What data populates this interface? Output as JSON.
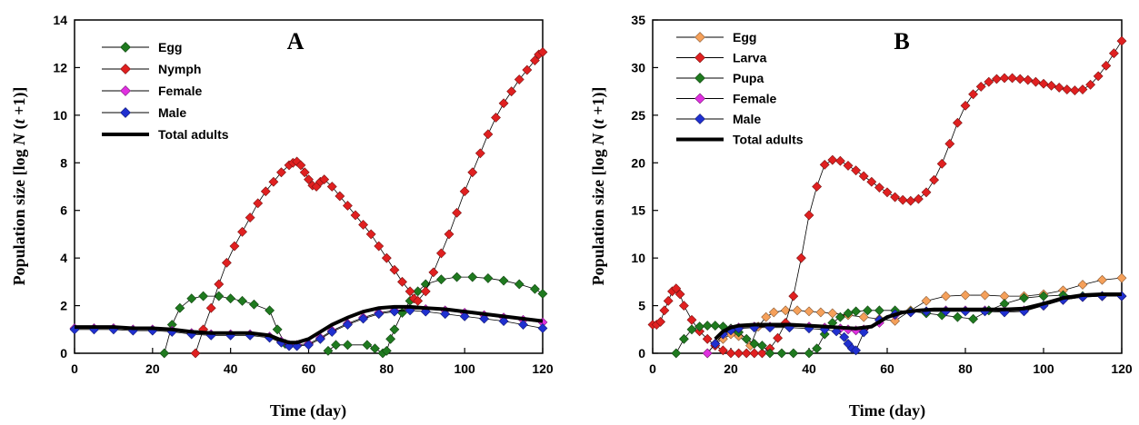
{
  "chart_data": [
    {
      "type": "line",
      "panel": "A",
      "xlabel": "Time (day)",
      "ylabel_pre": "Population size [log ",
      "ylabel_italic": "N",
      "ylabel_mid": " (",
      "ylabel_t": "t",
      "ylabel_post": " +1)]",
      "xlim": [
        0,
        120
      ],
      "ylim": [
        0,
        14
      ],
      "xticks": [
        "0",
        "20",
        "40",
        "60",
        "80",
        "100",
        "120"
      ],
      "yticks": [
        "0",
        "2",
        "4",
        "6",
        "8",
        "10",
        "12",
        "14"
      ],
      "grid": false,
      "legend_position": "top-left",
      "series": [
        {
          "name": "Egg",
          "color": "#1f7a1f",
          "marker": "diamond",
          "x": [
            0,
            22,
            23,
            25,
            27,
            30,
            33,
            37,
            40,
            43,
            46,
            50,
            52,
            54,
            55,
            56,
            58,
            60,
            62,
            65,
            67,
            70,
            75,
            77,
            79,
            80,
            81,
            82,
            84,
            86,
            88,
            90,
            94,
            98,
            102,
            106,
            110,
            114,
            118,
            120
          ],
          "y": [
            null,
            null,
            0,
            1.2,
            1.9,
            2.3,
            2.4,
            2.4,
            2.3,
            2.2,
            2.05,
            1.8,
            1.0,
            0.4,
            null,
            null,
            null,
            null,
            null,
            0.1,
            0.35,
            0.35,
            0.35,
            0.2,
            0,
            0.1,
            0.6,
            1.0,
            1.7,
            2.2,
            2.6,
            2.9,
            3.1,
            3.2,
            3.2,
            3.15,
            3.05,
            2.9,
            2.7,
            2.5
          ]
        },
        {
          "name": "Nymph",
          "color": "#e02020",
          "marker": "diamond",
          "x": [
            31,
            33,
            35,
            37,
            39,
            41,
            43,
            45,
            47,
            49,
            51,
            53,
            55,
            56,
            57,
            58,
            59,
            60,
            61,
            62,
            63,
            64,
            66,
            68,
            70,
            72,
            74,
            76,
            78,
            80,
            82,
            84,
            86,
            87,
            88,
            90,
            92,
            94,
            96,
            98,
            100,
            102,
            104,
            106,
            108,
            110,
            112,
            114,
            116,
            118,
            119,
            120
          ],
          "y": [
            0,
            1,
            1.9,
            2.9,
            3.8,
            4.5,
            5.1,
            5.7,
            6.3,
            6.8,
            7.2,
            7.6,
            7.9,
            8.0,
            8.05,
            7.9,
            7.6,
            7.3,
            7.05,
            7.0,
            7.2,
            7.3,
            7.0,
            6.6,
            6.2,
            5.8,
            5.4,
            5.0,
            4.5,
            4.0,
            3.5,
            3.0,
            2.6,
            2.3,
            2.2,
            2.6,
            3.4,
            4.2,
            5.0,
            5.9,
            6.8,
            7.6,
            8.4,
            9.2,
            9.9,
            10.5,
            11.0,
            11.5,
            11.9,
            12.3,
            12.55,
            12.65
          ]
        },
        {
          "name": "Female",
          "color": "#e030e0",
          "marker": "diamond",
          "x": [
            0,
            5,
            10,
            15,
            20,
            25,
            30,
            35,
            40,
            45,
            50,
            53,
            55,
            57,
            60,
            63,
            66,
            70,
            74,
            78,
            82,
            86,
            90,
            95,
            100,
            105,
            110,
            115,
            120
          ],
          "y": [
            1.05,
            1.05,
            1.05,
            1.0,
            1.0,
            0.95,
            0.85,
            0.8,
            0.8,
            0.8,
            0.7,
            0.5,
            0.35,
            0.35,
            0.4,
            0.65,
            0.95,
            1.25,
            1.5,
            1.7,
            1.8,
            1.85,
            1.85,
            1.8,
            1.7,
            1.6,
            1.5,
            1.4,
            1.3
          ]
        },
        {
          "name": "Male",
          "color": "#2030d0",
          "marker": "diamond",
          "x": [
            0,
            5,
            10,
            15,
            20,
            25,
            30,
            35,
            40,
            45,
            50,
            53,
            55,
            57,
            60,
            63,
            66,
            70,
            74,
            78,
            82,
            86,
            90,
            95,
            100,
            105,
            110,
            115,
            120
          ],
          "y": [
            1.0,
            1.0,
            1.0,
            0.95,
            0.95,
            0.9,
            0.8,
            0.75,
            0.75,
            0.75,
            0.65,
            0.45,
            0.3,
            0.3,
            0.35,
            0.6,
            0.9,
            1.2,
            1.45,
            1.65,
            1.75,
            1.8,
            1.75,
            1.65,
            1.55,
            1.45,
            1.35,
            1.2,
            1.05
          ]
        },
        {
          "name": "Total adults",
          "color": "#000000",
          "marker": "none",
          "x": [
            0,
            5,
            10,
            15,
            20,
            25,
            30,
            35,
            40,
            45,
            50,
            53,
            55,
            57,
            60,
            63,
            66,
            70,
            74,
            78,
            82,
            86,
            90,
            95,
            100,
            105,
            110,
            115,
            120
          ],
          "y": [
            1.1,
            1.1,
            1.1,
            1.05,
            1.05,
            1.0,
            0.9,
            0.85,
            0.85,
            0.85,
            0.75,
            0.55,
            0.45,
            0.45,
            0.6,
            0.9,
            1.2,
            1.5,
            1.75,
            1.9,
            1.95,
            1.95,
            1.9,
            1.85,
            1.75,
            1.65,
            1.55,
            1.45,
            1.35
          ]
        }
      ]
    },
    {
      "type": "line",
      "panel": "B",
      "xlabel": "Time (day)",
      "ylabel_pre": "Population size [log ",
      "ylabel_italic": "N",
      "ylabel_mid": " (",
      "ylabel_t": "t",
      "ylabel_post": " +1)]",
      "xlim": [
        0,
        120
      ],
      "ylim": [
        0,
        35
      ],
      "xticks": [
        "0",
        "20",
        "40",
        "60",
        "80",
        "100",
        "120"
      ],
      "yticks": [
        "0",
        "5",
        "10",
        "15",
        "20",
        "25",
        "30",
        "35"
      ],
      "grid": false,
      "legend_position": "top-left",
      "series": [
        {
          "name": "Egg",
          "color": "#f5a05a",
          "marker": "diamond",
          "x": [
            14,
            16,
            18,
            20,
            22,
            25,
            27,
            29,
            31,
            34,
            37,
            40,
            43,
            46,
            50,
            54,
            58,
            62,
            66,
            70,
            75,
            80,
            85,
            90,
            95,
            100,
            105,
            110,
            115,
            120
          ],
          "y": [
            0,
            1.0,
            1.5,
            2.0,
            1.8,
            0.8,
            2.8,
            3.8,
            4.3,
            4.5,
            4.5,
            4.4,
            4.3,
            4.2,
            4.0,
            3.8,
            3.6,
            3.4,
            4.5,
            5.5,
            6.0,
            6.1,
            6.1,
            6.0,
            6.0,
            6.2,
            6.6,
            7.2,
            7.7,
            7.9
          ]
        },
        {
          "name": "Larva",
          "color": "#e02020",
          "marker": "diamond",
          "x": [
            0,
            1,
            2,
            3,
            4,
            5,
            6,
            7,
            8,
            10,
            12,
            14,
            16,
            18,
            20,
            22,
            24,
            26,
            28,
            30,
            32,
            34,
            36,
            38,
            40,
            42,
            44,
            46,
            48,
            50,
            52,
            54,
            56,
            58,
            60,
            62,
            64,
            66,
            68,
            70,
            72,
            74,
            76,
            78,
            80,
            82,
            84,
            86,
            88,
            90,
            92,
            94,
            96,
            98,
            100,
            102,
            104,
            106,
            108,
            110,
            112,
            114,
            116,
            118,
            120
          ],
          "y": [
            3,
            3,
            3.3,
            4.5,
            5.5,
            6.5,
            6.8,
            6.2,
            5.0,
            3.5,
            2.3,
            1.5,
            0.8,
            0.3,
            0,
            0,
            0,
            0,
            0,
            0.5,
            1.6,
            3.2,
            6.0,
            10.0,
            14.5,
            17.5,
            19.8,
            20.3,
            20.2,
            19.7,
            19.2,
            18.6,
            18.0,
            17.4,
            16.9,
            16.4,
            16.1,
            16.0,
            16.2,
            16.9,
            18.2,
            19.9,
            22.0,
            24.2,
            26.0,
            27.2,
            28.0,
            28.5,
            28.8,
            28.9,
            28.9,
            28.8,
            28.7,
            28.5,
            28.3,
            28.1,
            27.9,
            27.7,
            27.6,
            27.7,
            28.2,
            29.1,
            30.2,
            31.5,
            32.8
          ]
        },
        {
          "name": "Pupa",
          "color": "#1f7a1f",
          "marker": "diamond",
          "x": [
            6,
            8,
            10,
            12,
            14,
            16,
            18,
            20,
            22,
            24,
            26,
            28,
            30,
            33,
            36,
            40,
            42,
            44,
            46,
            48,
            50,
            52,
            55,
            58,
            62,
            66,
            70,
            74,
            78,
            82,
            86,
            90,
            95,
            100,
            105,
            110,
            115,
            120
          ],
          "y": [
            0,
            1.5,
            2.5,
            2.8,
            2.9,
            2.9,
            2.8,
            2.6,
            2.2,
            1.5,
            1.0,
            0.8,
            0,
            0,
            0,
            0,
            0.5,
            2.0,
            3.2,
            3.8,
            4.2,
            4.4,
            4.5,
            4.5,
            4.5,
            4.4,
            4.2,
            4.0,
            3.8,
            3.6,
            4.5,
            5.2,
            5.8,
            6.0,
            6.1,
            6.0,
            6.0,
            6.0
          ]
        },
        {
          "name": "Female",
          "color": "#e030e0",
          "marker": "diamond",
          "x": [
            14,
            16,
            18,
            20,
            22,
            26,
            30,
            35,
            40,
            44,
            48,
            50,
            52,
            54,
            58,
            62,
            66,
            70,
            75,
            80,
            85,
            90,
            95,
            100,
            105,
            110,
            115,
            120
          ],
          "y": [
            0,
            1.0,
            2.0,
            2.5,
            2.7,
            2.8,
            2.8,
            2.8,
            2.8,
            2.7,
            2.6,
            2.5,
            2.4,
            2.5,
            3.2,
            4.0,
            4.3,
            4.4,
            4.5,
            4.5,
            4.5,
            4.4,
            4.5,
            5.0,
            5.6,
            5.9,
            6.0,
            6.0
          ]
        },
        {
          "name": "Male",
          "color": "#2030d0",
          "marker": "diamond",
          "x": [
            16,
            18,
            20,
            22,
            26,
            30,
            35,
            40,
            44,
            47,
            49,
            50,
            51,
            52,
            54,
            58,
            62,
            66,
            70,
            75,
            80,
            85,
            90,
            95,
            100,
            105,
            110,
            115,
            120
          ],
          "y": [
            1.0,
            2.0,
            2.4,
            2.6,
            2.7,
            2.7,
            2.7,
            2.6,
            2.5,
            2.3,
            1.7,
            1.0,
            0.5,
            0.3,
            2.2,
            3.5,
            4.1,
            4.3,
            4.4,
            4.4,
            4.4,
            4.4,
            4.3,
            4.4,
            5.0,
            5.6,
            5.9,
            6.0,
            6.0
          ]
        },
        {
          "name": "Total adults",
          "color": "#000000",
          "marker": "none",
          "x": [
            16,
            18,
            20,
            22,
            26,
            30,
            35,
            40,
            44,
            48,
            52,
            56,
            60,
            64,
            68,
            72,
            76,
            80,
            85,
            90,
            95,
            100,
            105,
            110,
            115,
            120
          ],
          "y": [
            1.5,
            2.3,
            2.7,
            2.9,
            3.0,
            3.0,
            3.0,
            2.9,
            2.8,
            2.7,
            2.6,
            2.8,
            3.8,
            4.3,
            4.5,
            4.6,
            4.6,
            4.6,
            4.6,
            4.6,
            4.7,
            5.2,
            5.8,
            6.1,
            6.2,
            6.2
          ]
        }
      ]
    }
  ]
}
